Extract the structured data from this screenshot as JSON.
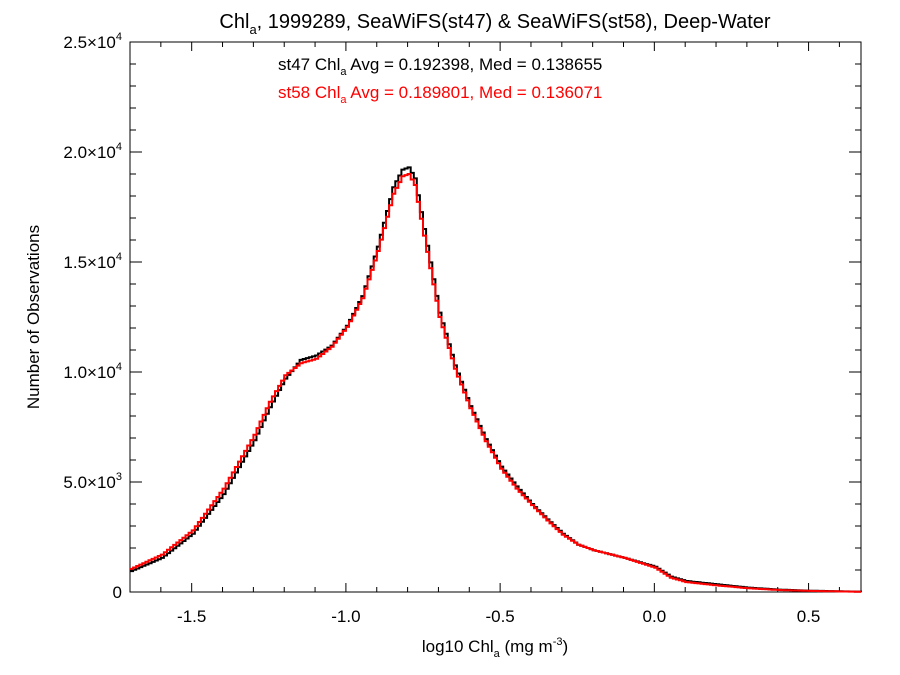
{
  "colors": {
    "series_1": "#000000",
    "series_2": "#ff0000",
    "axes": "#000000"
  },
  "chart_data": {
    "type": "line",
    "step": true,
    "title": {
      "base": "Chl",
      "sub": "a",
      "rest": ", 1999289, SeaWiFS(st47) & SeaWiFS(st58), Deep-Water"
    },
    "xlabel": {
      "base": "log10 Chl",
      "sub": "a",
      "mid": " (mg m",
      "sup": "-3",
      "end": ")"
    },
    "ylabel": "Number of Observations",
    "xlim": [
      -1.7,
      0.67
    ],
    "ylim": [
      0,
      25000
    ],
    "xticks": [
      {
        "value": -1.5,
        "label": "-1.5"
      },
      {
        "value": -1.0,
        "label": "-1.0"
      },
      {
        "value": -0.5,
        "label": "-0.5"
      },
      {
        "value": 0.0,
        "label": "0.0"
      },
      {
        "value": 0.5,
        "label": "0.5"
      }
    ],
    "yticks": [
      {
        "value": 0,
        "mant": "0",
        "exp": ""
      },
      {
        "value": 5000,
        "mant": "5.0×10",
        "exp": "3"
      },
      {
        "value": 10000,
        "mant": "1.0×10",
        "exp": "4"
      },
      {
        "value": 15000,
        "mant": "1.5×10",
        "exp": "4"
      },
      {
        "value": 20000,
        "mant": "2.0×10",
        "exp": "4"
      },
      {
        "value": 25000,
        "mant": "2.5×10",
        "exp": "4"
      }
    ],
    "grid": false,
    "annotations": [
      {
        "prefix": "st47 Chl",
        "sub": "a",
        "rest": " Avg = 0.192398, Med = 0.138655",
        "color": "#000000"
      },
      {
        "prefix": "st58 Chl",
        "sub": "a",
        "rest": " Avg = 0.189801, Med = 0.136071",
        "color": "#ff0000"
      }
    ],
    "series": [
      {
        "color": "#000000",
        "x": [
          -1.7,
          -1.6,
          -1.5,
          -1.4,
          -1.3,
          -1.25,
          -1.2,
          -1.15,
          -1.1,
          -1.05,
          -1.0,
          -0.95,
          -0.9,
          -0.85,
          -0.82,
          -0.8,
          -0.78,
          -0.75,
          -0.7,
          -0.65,
          -0.6,
          -0.55,
          -0.5,
          -0.45,
          -0.4,
          -0.35,
          -0.3,
          -0.25,
          -0.2,
          -0.1,
          0.0,
          0.05,
          0.1,
          0.2,
          0.3,
          0.4,
          0.5,
          0.6,
          0.67
        ],
        "y": [
          950,
          1550,
          2650,
          4450,
          6900,
          8400,
          9700,
          10550,
          10750,
          11200,
          12100,
          13450,
          15700,
          18400,
          19200,
          19300,
          18800,
          16500,
          12700,
          10300,
          8450,
          6950,
          5700,
          4800,
          4000,
          3300,
          2650,
          2150,
          1900,
          1550,
          1150,
          700,
          500,
          350,
          200,
          110,
          60,
          30,
          15
        ]
      },
      {
        "color": "#ff0000",
        "x": [
          -1.7,
          -1.6,
          -1.5,
          -1.4,
          -1.3,
          -1.25,
          -1.2,
          -1.15,
          -1.1,
          -1.05,
          -1.0,
          -0.95,
          -0.9,
          -0.85,
          -0.82,
          -0.8,
          -0.78,
          -0.75,
          -0.7,
          -0.65,
          -0.6,
          -0.55,
          -0.5,
          -0.45,
          -0.4,
          -0.35,
          -0.3,
          -0.25,
          -0.2,
          -0.1,
          0.0,
          0.05,
          0.1,
          0.2,
          0.3,
          0.4,
          0.5,
          0.6,
          0.67
        ],
        "y": [
          1050,
          1700,
          2800,
          4700,
          7150,
          8650,
          9850,
          10400,
          10600,
          11150,
          12050,
          13350,
          15500,
          18100,
          18900,
          19000,
          18500,
          16200,
          12500,
          10150,
          8350,
          6850,
          5600,
          4700,
          3950,
          3250,
          2600,
          2150,
          1900,
          1550,
          1100,
          650,
          450,
          300,
          170,
          90,
          50,
          25,
          12
        ]
      }
    ]
  }
}
